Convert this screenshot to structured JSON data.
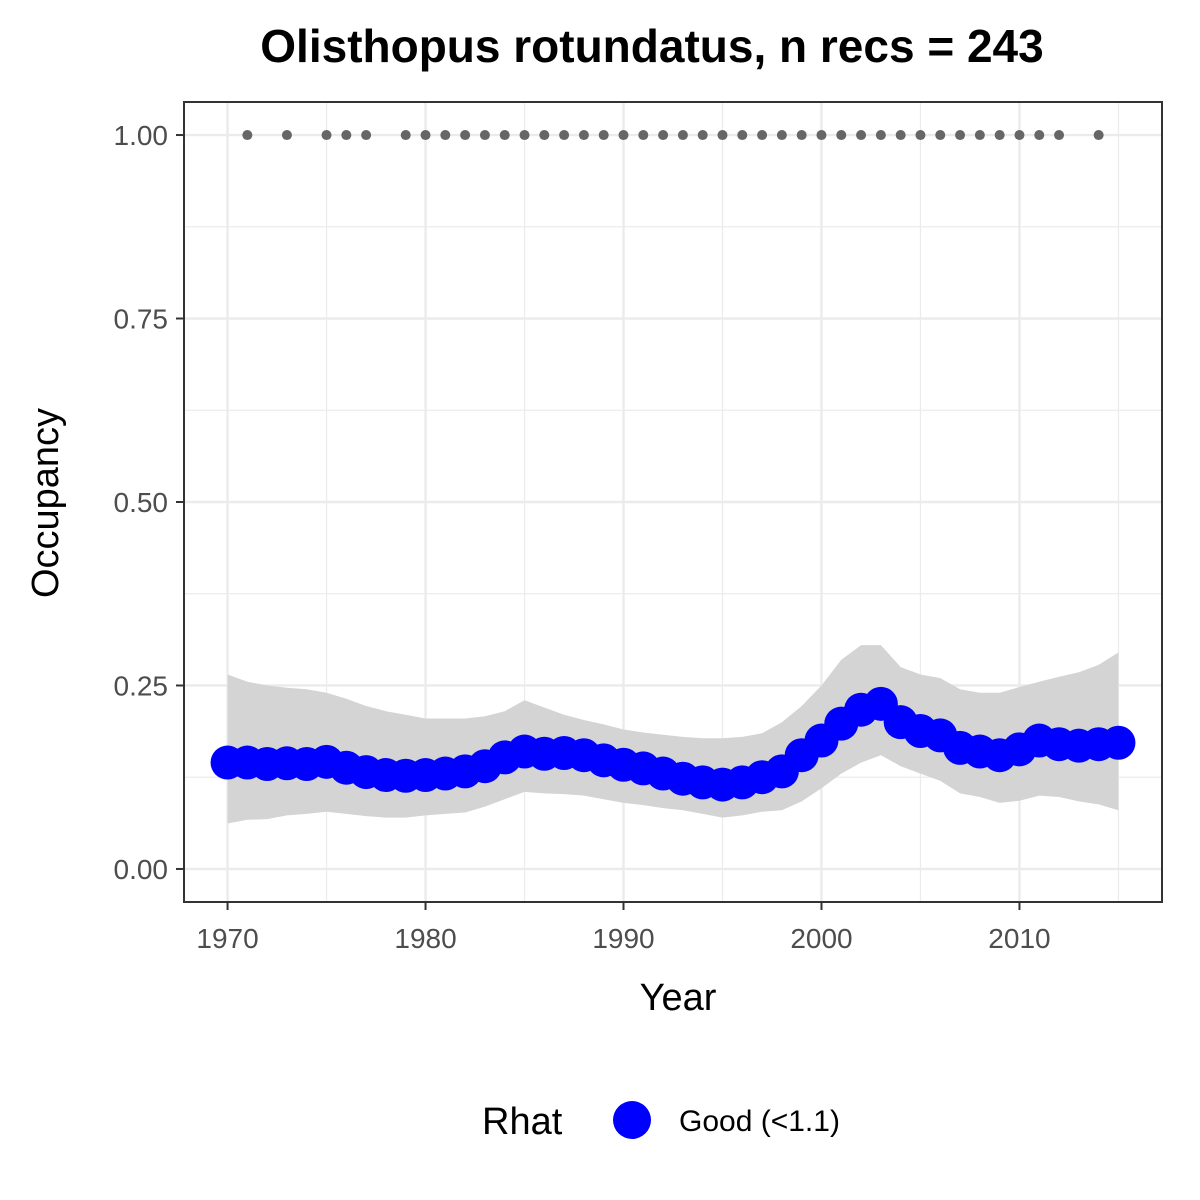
{
  "chart_data": {
    "type": "line",
    "title": "Olisthopus rotundatus, n recs = 243",
    "xlabel": "Year",
    "ylabel": "Occupancy",
    "xlim": [
      1967.8,
      2017.2
    ],
    "ylim": [
      -0.045,
      1.045
    ],
    "x_ticks": [
      1970,
      1980,
      1990,
      2000,
      2010
    ],
    "y_ticks": [
      0,
      0.25,
      0.5,
      0.75,
      1
    ],
    "y_tick_labels": [
      "0.00",
      "0.25",
      "0.50",
      "0.75",
      "1.00"
    ],
    "grid": true,
    "legend": {
      "position": "bottom",
      "title": "Rhat",
      "entries": [
        {
          "label": "Good (<1.1)",
          "color": "#0000ff"
        }
      ]
    },
    "colors": {
      "points": "#0000ff",
      "ribbon": "#d4d4d4",
      "records": "#666666",
      "grid": "#ebebeb",
      "panel_border": "#333333"
    },
    "series": [
      {
        "name": "Good (<1.1)",
        "x": [
          1970,
          1971,
          1972,
          1973,
          1974,
          1975,
          1976,
          1977,
          1978,
          1979,
          1980,
          1981,
          1982,
          1983,
          1984,
          1985,
          1986,
          1987,
          1988,
          1989,
          1990,
          1991,
          1992,
          1993,
          1994,
          1995,
          1996,
          1997,
          1998,
          1999,
          2000,
          2001,
          2002,
          2003,
          2004,
          2005,
          2006,
          2007,
          2008,
          2009,
          2010,
          2011,
          2012,
          2013,
          2014,
          2015
        ],
        "y": [
          0.145,
          0.145,
          0.143,
          0.144,
          0.143,
          0.146,
          0.138,
          0.132,
          0.128,
          0.127,
          0.128,
          0.13,
          0.133,
          0.14,
          0.152,
          0.16,
          0.157,
          0.158,
          0.155,
          0.148,
          0.142,
          0.137,
          0.13,
          0.123,
          0.118,
          0.115,
          0.118,
          0.125,
          0.133,
          0.155,
          0.175,
          0.198,
          0.217,
          0.225,
          0.2,
          0.188,
          0.182,
          0.165,
          0.16,
          0.155,
          0.163,
          0.175,
          0.17,
          0.168,
          0.17,
          0.172
        ],
        "lower": [
          0.062,
          0.067,
          0.068,
          0.073,
          0.075,
          0.078,
          0.075,
          0.072,
          0.07,
          0.07,
          0.073,
          0.075,
          0.077,
          0.085,
          0.095,
          0.105,
          0.103,
          0.102,
          0.1,
          0.095,
          0.09,
          0.087,
          0.083,
          0.08,
          0.075,
          0.07,
          0.073,
          0.078,
          0.08,
          0.092,
          0.11,
          0.13,
          0.145,
          0.155,
          0.14,
          0.13,
          0.12,
          0.103,
          0.098,
          0.09,
          0.093,
          0.1,
          0.098,
          0.092,
          0.088,
          0.08
        ],
        "upper": [
          0.265,
          0.255,
          0.25,
          0.247,
          0.245,
          0.24,
          0.232,
          0.222,
          0.215,
          0.21,
          0.205,
          0.205,
          0.205,
          0.208,
          0.215,
          0.23,
          0.22,
          0.21,
          0.203,
          0.197,
          0.19,
          0.186,
          0.183,
          0.18,
          0.178,
          0.178,
          0.18,
          0.185,
          0.2,
          0.222,
          0.25,
          0.285,
          0.305,
          0.305,
          0.275,
          0.265,
          0.26,
          0.245,
          0.24,
          0.24,
          0.248,
          0.255,
          0.262,
          0.268,
          0.278,
          0.295
        ]
      }
    ],
    "records": {
      "x": [
        1971,
        1973,
        1975,
        1976,
        1977,
        1979,
        1980,
        1981,
        1982,
        1983,
        1984,
        1985,
        1986,
        1987,
        1988,
        1989,
        1990,
        1991,
        1992,
        1993,
        1994,
        1995,
        1996,
        1997,
        1998,
        1999,
        2000,
        2001,
        2002,
        2003,
        2004,
        2005,
        2006,
        2007,
        2008,
        2009,
        2010,
        2011,
        2012,
        2014
      ],
      "y": 1
    }
  }
}
